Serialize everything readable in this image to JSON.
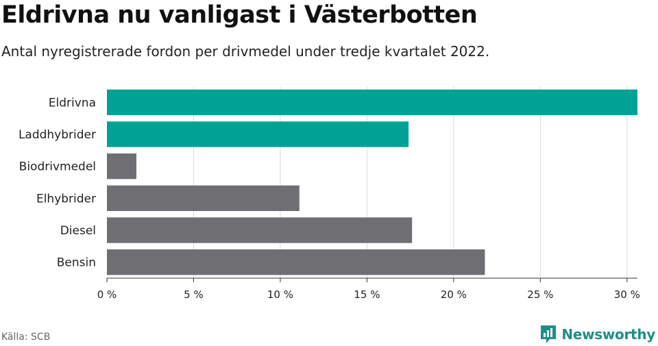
{
  "header": {
    "title": "Eldrivna nu vanligast i Västerbotten",
    "subtitle": "Antal nyregistrerade fordon per drivmedel under tredje kvartalet 2022."
  },
  "footer": {
    "source": "Källa: SCB",
    "brand": "Newsworthy"
  },
  "colors": {
    "highlight": "#00a295",
    "default": "#6e6e73",
    "grid": "#d9d9d9",
    "brand": "#1d8f86"
  },
  "chart_data": {
    "type": "bar",
    "orientation": "horizontal",
    "title": "Eldrivna nu vanligast i Västerbotten",
    "subtitle": "Antal nyregistrerade fordon per drivmedel under tredje kvartalet 2022.",
    "categories": [
      "Eldrivna",
      "Laddhybrider",
      "Biodrivmedel",
      "Elhybrider",
      "Diesel",
      "Bensin"
    ],
    "values": [
      30.6,
      17.4,
      1.7,
      11.1,
      17.6,
      21.8
    ],
    "highlighted": [
      true,
      true,
      false,
      false,
      false,
      false
    ],
    "xlim": [
      0,
      30.6
    ],
    "xticks": [
      0,
      5,
      10,
      15,
      20,
      25,
      30
    ],
    "xtick_labels": [
      "0 %",
      "5 %",
      "10 %",
      "15 %",
      "20 %",
      "25 %",
      "30 %"
    ],
    "grid": true
  }
}
